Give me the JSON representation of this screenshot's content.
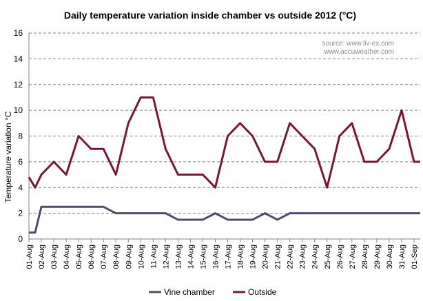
{
  "chart_data": {
    "type": "line",
    "title": "Daily temperature variation inside chamber vs outside 2012 (°C)",
    "xlabel": "",
    "ylabel": "Temperature  variation °C",
    "ylim": [
      0,
      16
    ],
    "yticks": [
      0,
      2,
      4,
      6,
      8,
      10,
      12,
      14,
      16
    ],
    "grid": true,
    "legend_position": "bottom",
    "source_lines": [
      "source: www.liv-ex.com",
      "www.accuweather.com"
    ],
    "categories": [
      "01-Aug",
      "02-Aug",
      "03-Aug",
      "04-Aug",
      "05-Aug",
      "06-Aug",
      "07-Aug",
      "08-Aug",
      "09-Aug",
      "10-Aug",
      "11-Aug",
      "12-Aug",
      "13-Aug",
      "14-Aug",
      "15-Aug",
      "16-Aug",
      "17-Aug",
      "18-Aug",
      "19-Aug",
      "20-Aug",
      "21-Aug",
      "22-Aug",
      "23-Aug",
      "24-Aug",
      "25-Aug",
      "26-Aug",
      "27-Aug",
      "28-Aug",
      "29-Aug",
      "30-Aug",
      "31-Aug",
      "01-Sep"
    ],
    "x": [
      0,
      0.5,
      1,
      2,
      3,
      4,
      5,
      6,
      7,
      8,
      9,
      10,
      11,
      12,
      13,
      14,
      15,
      16,
      17,
      18,
      19,
      20,
      21,
      22,
      23,
      24,
      25,
      26,
      27,
      28,
      29,
      30,
      31,
      31.5
    ],
    "series": [
      {
        "name": "Vine chamber",
        "color": "#4d4d6b",
        "values": [
          0.5,
          0.5,
          2.5,
          2.5,
          2.5,
          2.5,
          2.5,
          2.5,
          2.0,
          2.0,
          2.0,
          2.0,
          2.0,
          1.5,
          1.5,
          1.5,
          2.0,
          1.5,
          1.5,
          1.5,
          2.0,
          1.5,
          2.0,
          2.0,
          2.0,
          2.0,
          2.0,
          2.0,
          2.0,
          2.0,
          2.0,
          2.0,
          2.0,
          2.0
        ]
      },
      {
        "name": "Outside",
        "color": "#7b1437",
        "values": [
          4.8,
          4.0,
          5.0,
          6.0,
          5.0,
          8.0,
          7.0,
          7.0,
          5.0,
          9.0,
          11.0,
          11.0,
          7.0,
          5.0,
          5.0,
          5.0,
          4.0,
          8.0,
          9.0,
          8.0,
          6.0,
          6.0,
          9.0,
          8.0,
          7.0,
          4.0,
          8.0,
          9.0,
          6.0,
          6.0,
          7.0,
          10.0,
          6.0,
          6.0
        ]
      }
    ]
  }
}
